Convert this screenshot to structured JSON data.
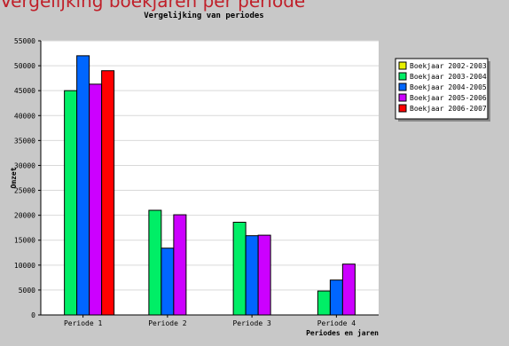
{
  "page": {
    "header_text": "Vergelijking boekjaren per periode"
  },
  "chart_data": {
    "type": "bar",
    "title": "Vergelijking van periodes",
    "xlabel": "Periodes en jaren",
    "ylabel": "Omzet",
    "ylim": [
      0,
      55000
    ],
    "yticks": [
      0,
      5000,
      10000,
      15000,
      20000,
      25000,
      30000,
      35000,
      40000,
      45000,
      50000,
      55000
    ],
    "ytick_labels": [
      "0",
      "5000",
      "10000",
      "15000",
      "20000",
      "25000",
      "30000",
      "35000",
      "40000",
      "45000",
      "50000",
      "55000"
    ],
    "grid": true,
    "legend_position": "top-right",
    "categories": [
      "Periode 1",
      "Periode 2",
      "Periode 3",
      "Periode 4"
    ],
    "series": [
      {
        "name": "Boekjaar 2002-2003",
        "color": "#e8f000",
        "values": [
          0,
          0,
          0,
          0
        ]
      },
      {
        "name": "Boekjaar 2003-2004",
        "color": "#00ee66",
        "values": [
          45000,
          21000,
          18600,
          4800
        ]
      },
      {
        "name": "Boekjaar 2004-2005",
        "color": "#0066ff",
        "values": [
          52000,
          13400,
          15900,
          7000
        ]
      },
      {
        "name": "Boekjaar 2005-2006",
        "color": "#cc00ff",
        "values": [
          46300,
          20100,
          16000,
          10200
        ]
      },
      {
        "name": "Boekjaar 2006-2007",
        "color": "#ff0000",
        "values": [
          49000,
          0,
          0,
          0
        ]
      }
    ]
  }
}
